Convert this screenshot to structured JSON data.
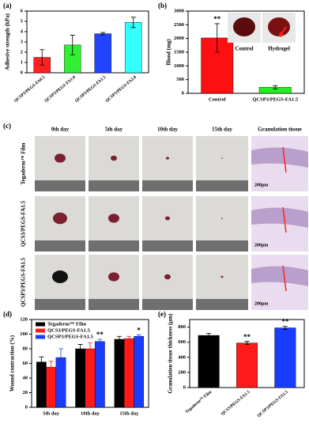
{
  "chart_data": [
    {
      "type": "bar",
      "panel_label": "(a)",
      "y_label": "Adhesive strength (kPa)",
      "categories": [
        "QCSP3/PEGS-FA0.5",
        "QCSP3/PEGS-FA1.0",
        "QCSP3/PEGS-FA1.5",
        "QCSP3/PEGS-FA2.0"
      ],
      "values": [
        1.5,
        2.7,
        3.8,
        4.9
      ],
      "errors": [
        0.75,
        0.95,
        0.12,
        0.5
      ],
      "colors": [
        "#ff2020",
        "#33ee33",
        "#2244ff",
        "#33ffff"
      ],
      "ylim": [
        0,
        6
      ],
      "yticks": [
        0,
        1,
        2,
        3,
        4,
        5,
        6
      ]
    },
    {
      "type": "bar",
      "panel_label": "(b)",
      "y_label": "Blood (mg)",
      "categories": [
        "Control",
        "QCSP3/PEGS-FA1.5"
      ],
      "values": [
        2020,
        220
      ],
      "errors": [
        520,
        60
      ],
      "annotations": [
        "**",
        null
      ],
      "colors": [
        "#ff1010",
        "#22ee22"
      ],
      "inset_labels": [
        "Control",
        "Hydrogel"
      ],
      "ylim": [
        0,
        3000
      ],
      "yticks": [
        0,
        500,
        1000,
        1500,
        2000,
        2500,
        3000
      ]
    },
    {
      "type": "bar",
      "panel_label": "(d)",
      "y_label": "Wound contraction (%)",
      "categories": [
        "5th day",
        "10th day",
        "15th day"
      ],
      "series": [
        {
          "name": "Tegaderm™ Film",
          "color": "#000000",
          "values": [
            62,
            80,
            93
          ],
          "errors": [
            7,
            6,
            4
          ],
          "annotations": [
            null,
            null,
            null
          ]
        },
        {
          "name": "QCS3/PEGS-FA1.5",
          "color": "#ff1a1a",
          "values": [
            55,
            80,
            94
          ],
          "errors": [
            8,
            8,
            3
          ],
          "annotations": [
            null,
            null,
            null
          ]
        },
        {
          "name": "QCSP3/PEGS-FA1.5",
          "color": "#1a3cff",
          "values": [
            68,
            90,
            97
          ],
          "errors": [
            12,
            3,
            2
          ],
          "annotations": [
            null,
            "**",
            "*"
          ]
        }
      ],
      "ylim": [
        0,
        120
      ],
      "yticks": [
        0,
        20,
        40,
        60,
        80,
        100,
        120
      ]
    },
    {
      "type": "bar",
      "panel_label": "(e)",
      "y_label": "Granulation tissue thickness (μm)",
      "categories": [
        "Tegaderm™ Film",
        "QCS3/PEGS-FA1.5",
        "QCSP3/PEGS-FA1.5"
      ],
      "values": [
        690,
        590,
        790
      ],
      "errors": [
        25,
        20,
        20
      ],
      "annotations": [
        null,
        "**",
        "**"
      ],
      "colors": [
        "#000000",
        "#ff1a1a",
        "#1a3cff"
      ],
      "ylim": [
        0,
        900
      ],
      "yticks": [
        0,
        200,
        400,
        600,
        800
      ]
    }
  ],
  "photo_panel": {
    "panel_label": "(c)",
    "columns": [
      "0th day",
      "5th day",
      "10th day",
      "15th day",
      "Granulation tissue"
    ],
    "rows": [
      "Tegaderm™ Film",
      "QCS3/PEGS-FA1.5",
      "QCSP3/PEGS-FA1.5"
    ],
    "scale_labels": [
      "200μm",
      "200μm",
      "200μm"
    ]
  }
}
